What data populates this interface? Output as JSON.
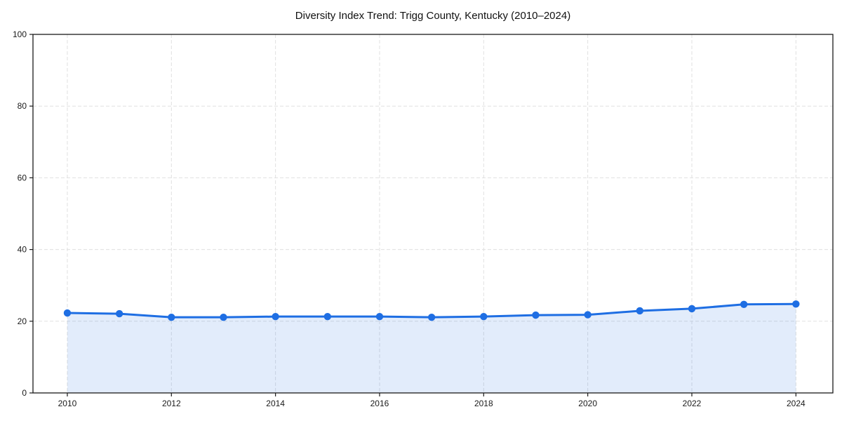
{
  "page": {
    "background_color": "#ffffff"
  },
  "chart_data": {
    "type": "line",
    "title": "Diversity Index Trend: Trigg County, Kentucky (2010–2024)",
    "series": [
      {
        "name": "Diversity Index",
        "x": [
          2010,
          2011,
          2012,
          2013,
          2014,
          2015,
          2016,
          2017,
          2018,
          2019,
          2020,
          2021,
          2022,
          2023,
          2024
        ],
        "values": [
          22.3,
          22.1,
          21.1,
          21.1,
          21.3,
          21.3,
          21.3,
          21.1,
          21.3,
          21.7,
          21.8,
          22.9,
          23.5,
          24.7,
          24.8
        ]
      }
    ],
    "xlabel": "",
    "ylabel": "",
    "xlim": [
      2009.34,
      2024.71
    ],
    "ylim": [
      0,
      100
    ],
    "xticks": [
      2010,
      2012,
      2014,
      2016,
      2018,
      2020,
      2022,
      2024
    ],
    "yticks": [
      0,
      20,
      40,
      60,
      80,
      100
    ],
    "grid": "dashed-both",
    "legend": "none",
    "area_fill": true,
    "style": {
      "line_color": "#1e6ee3",
      "marker_color": "#1e6ee3",
      "fill_color": "rgba(30, 110, 227, 0.13)",
      "grid_color": "#e0e0e0",
      "axis_color": "#1a1a1a",
      "line_width": 3,
      "marker_radius": 5.2
    }
  }
}
